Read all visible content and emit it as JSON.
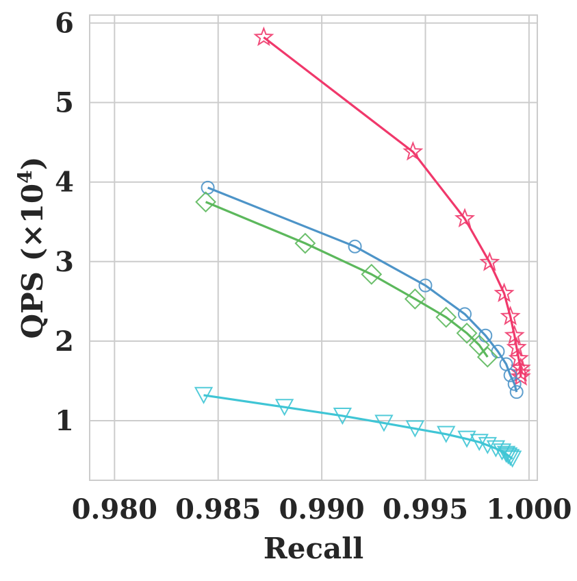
{
  "chart_data": {
    "type": "line",
    "xlabel": "Recall",
    "ylabel": "QPS (×10",
    "ylabel_exponent": "4",
    "ylabel_suffix": ")",
    "xlim": [
      0.9788,
      1.0004
    ],
    "ylim": [
      0.25,
      6.1
    ],
    "x_ticks": [
      0.98,
      0.985,
      0.99,
      0.995,
      1.0
    ],
    "x_tick_labels": [
      "0.980",
      "0.985",
      "0.990",
      "0.995",
      "1.000"
    ],
    "y_ticks": [
      1,
      2,
      3,
      4,
      5,
      6
    ],
    "y_tick_labels": [
      "1",
      "2",
      "3",
      "4",
      "5",
      "6"
    ],
    "grid": true,
    "series": [
      {
        "marker": "star",
        "color": "#f0386b",
        "points": [
          [
            0.9872,
            5.82
          ],
          [
            0.9944,
            4.38
          ],
          [
            0.9969,
            3.54
          ],
          [
            0.9981,
            2.99
          ],
          [
            0.9988,
            2.6
          ],
          [
            0.9991,
            2.31
          ],
          [
            0.9993,
            2.07
          ],
          [
            0.9994,
            1.92
          ],
          [
            0.9995,
            1.78
          ],
          [
            0.9996,
            1.66
          ],
          [
            0.9996,
            1.6
          ],
          [
            0.9996,
            1.55
          ]
        ]
      },
      {
        "marker": "circle",
        "color": "#4d94c8",
        "points": [
          [
            0.9845,
            3.93
          ],
          [
            0.9916,
            3.19
          ],
          [
            0.995,
            2.7
          ],
          [
            0.9969,
            2.34
          ],
          [
            0.9979,
            2.07
          ],
          [
            0.9985,
            1.87
          ],
          [
            0.9989,
            1.71
          ],
          [
            0.9991,
            1.57
          ],
          [
            0.9993,
            1.46
          ],
          [
            0.9994,
            1.36
          ]
        ]
      },
      {
        "marker": "diamond",
        "color": "#5cb85c",
        "points": [
          [
            0.9844,
            3.75
          ],
          [
            0.9892,
            3.23
          ],
          [
            0.9924,
            2.84
          ],
          [
            0.9945,
            2.53
          ],
          [
            0.996,
            2.3
          ],
          [
            0.997,
            2.1
          ],
          [
            0.9976,
            1.95
          ],
          [
            0.998,
            1.8
          ]
        ]
      },
      {
        "marker": "triangle-down",
        "color": "#3fc5d5",
        "points": [
          [
            0.9843,
            1.32
          ],
          [
            0.9882,
            1.17
          ],
          [
            0.991,
            1.06
          ],
          [
            0.993,
            0.97
          ],
          [
            0.9945,
            0.9
          ],
          [
            0.996,
            0.83
          ],
          [
            0.997,
            0.77
          ],
          [
            0.9976,
            0.73
          ],
          [
            0.998,
            0.69
          ],
          [
            0.9984,
            0.65
          ],
          [
            0.9987,
            0.61
          ],
          [
            0.9989,
            0.58
          ],
          [
            0.999,
            0.56
          ],
          [
            0.9991,
            0.54
          ],
          [
            0.9992,
            0.52
          ]
        ]
      }
    ]
  }
}
